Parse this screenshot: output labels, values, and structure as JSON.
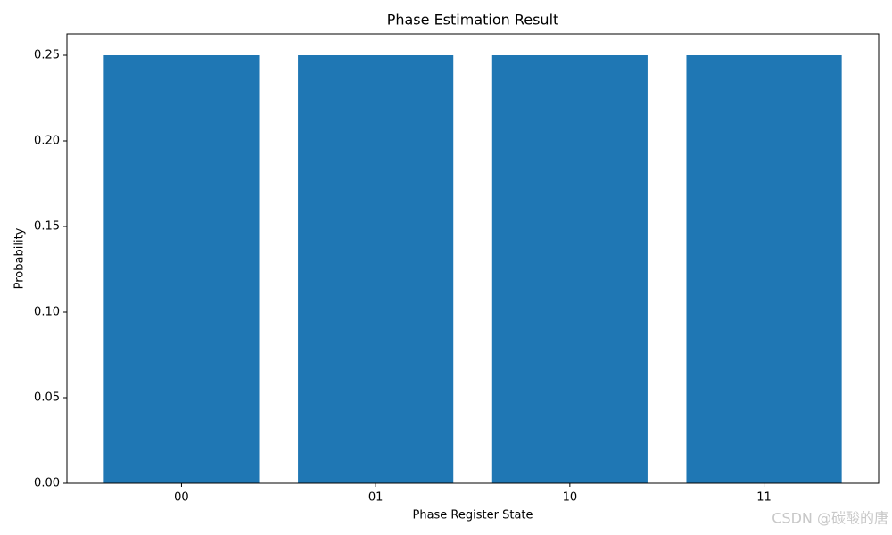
{
  "chart_data": {
    "type": "bar",
    "title": "Phase Estimation Result",
    "x_label": "Phase Register State",
    "y_label": "Probability",
    "categories": [
      "00",
      "01",
      "10",
      "11"
    ],
    "values": [
      0.25,
      0.25,
      0.25,
      0.25
    ],
    "color": "#1f77b4",
    "ylim": [
      0,
      0.2625
    ],
    "yticks": [
      {
        "value": 0,
        "label": "0.00"
      },
      {
        "value": 0.05,
        "label": "0.05"
      },
      {
        "value": 0.1,
        "label": "0.10"
      },
      {
        "value": 0.15,
        "label": "0.15"
      },
      {
        "value": 0.2,
        "label": "0.20"
      },
      {
        "value": 0.25,
        "label": "0.25"
      }
    ],
    "grid": false
  },
  "watermark": "CSDN @碳酸的唐"
}
